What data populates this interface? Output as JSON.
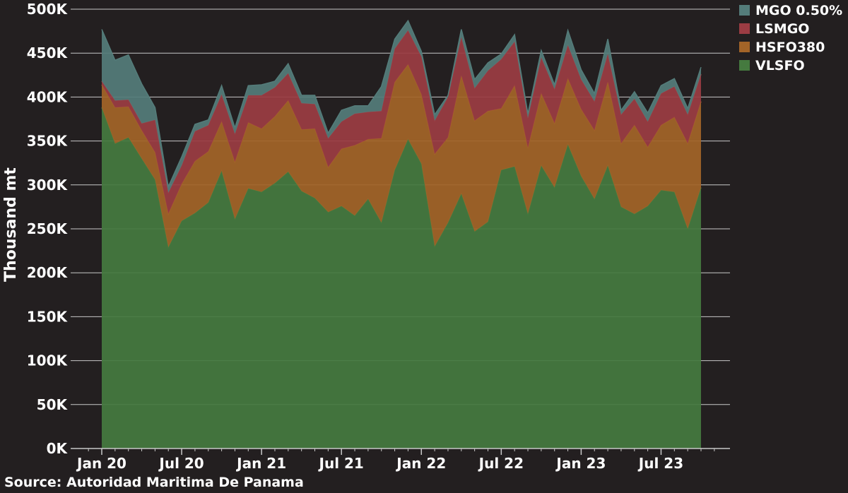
{
  "chart_data": {
    "type": "area",
    "stacked": true,
    "x_start": "2020-01",
    "x_end": "2023-10",
    "frequency": "monthly",
    "ylabel": "Thousand mt",
    "xlabel": "",
    "ylim": [
      0,
      500000
    ],
    "y_ticks": [
      "0K",
      "50K",
      "100K",
      "150K",
      "200K",
      "250K",
      "300K",
      "350K",
      "400K",
      "450K",
      "500K"
    ],
    "x_ticks": [
      {
        "label": "Jan 20",
        "date": "2020-01"
      },
      {
        "label": "Jul 20",
        "date": "2020-07"
      },
      {
        "label": "Jan 21",
        "date": "2021-01"
      },
      {
        "label": "Jul 21",
        "date": "2021-07"
      },
      {
        "label": "Jan 22",
        "date": "2022-01"
      },
      {
        "label": "Jul 22",
        "date": "2022-07"
      },
      {
        "label": "Jan 23",
        "date": "2023-01"
      },
      {
        "label": "Jul 23",
        "date": "2023-07"
      }
    ],
    "grid": "horizontal",
    "legend_position": "top-right",
    "series": [
      {
        "name": "VLSFO",
        "color": "#457a3f",
        "values": [
          388000,
          347000,
          354000,
          330000,
          306000,
          229000,
          259000,
          268000,
          280000,
          316000,
          261000,
          296000,
          292000,
          302000,
          315000,
          293000,
          285000,
          269000,
          276000,
          265000,
          284000,
          257000,
          317000,
          352000,
          324000,
          230000,
          257000,
          290000,
          247000,
          258000,
          317000,
          321000,
          267000,
          322000,
          297000,
          346000,
          310000,
          284000,
          322000,
          275000,
          267000,
          276000,
          294000,
          292000,
          250000,
          297000
        ]
      },
      {
        "name": "HSFO380",
        "color": "#a36428",
        "values": [
          26000,
          41000,
          35000,
          32000,
          31000,
          38000,
          42000,
          59000,
          58000,
          56000,
          65000,
          75000,
          72000,
          76000,
          81000,
          70000,
          79000,
          51000,
          65000,
          80000,
          68000,
          96000,
          100000,
          85000,
          79000,
          105000,
          97000,
          134000,
          126000,
          126000,
          70000,
          92000,
          75000,
          82000,
          73000,
          75000,
          76000,
          78000,
          95000,
          72000,
          101000,
          67000,
          74000,
          85000,
          97000,
          98000
        ]
      },
      {
        "name": "LSMGO",
        "color": "#9b3c43",
        "values": [
          4000,
          8000,
          8000,
          8000,
          37000,
          24000,
          21000,
          34000,
          30000,
          31000,
          32000,
          31000,
          38000,
          33000,
          31000,
          30000,
          28000,
          33000,
          31000,
          36000,
          31000,
          31000,
          38000,
          39000,
          43000,
          38000,
          46000,
          44000,
          37000,
          46000,
          56000,
          50000,
          34000,
          41000,
          39000,
          38000,
          34000,
          33000,
          32000,
          33000,
          30000,
          29000,
          36000,
          35000,
          33000,
          31000
        ]
      },
      {
        "name": "MGO 0.50%",
        "color": "#547c7a",
        "values": [
          59000,
          46000,
          51000,
          45000,
          14000,
          7000,
          10000,
          8000,
          6000,
          10000,
          7000,
          11000,
          12000,
          7000,
          11000,
          9000,
          10000,
          6000,
          13000,
          9000,
          7000,
          28000,
          11000,
          11000,
          6000,
          7000,
          2000,
          9000,
          10000,
          9000,
          6000,
          8000,
          5000,
          8000,
          5000,
          17000,
          11000,
          9000,
          17000,
          5000,
          8000,
          10000,
          9000,
          9000,
          7000,
          8000
        ]
      }
    ]
  },
  "source": "Source: Autoridad Maritima De Panama"
}
